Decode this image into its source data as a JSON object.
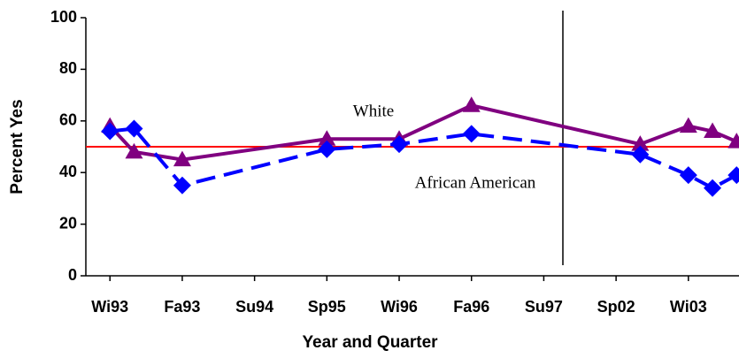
{
  "chart_data": {
    "type": "line",
    "xlabel": "Year and Quarter",
    "ylabel": "Percent Yes",
    "xlim": [
      -1,
      26.1
    ],
    "xticks": [
      {
        "value": 0,
        "label": "Wi93"
      },
      {
        "value": 3,
        "label": "Fa93"
      },
      {
        "value": 6,
        "label": "Su94"
      },
      {
        "value": 9,
        "label": "Sp95"
      },
      {
        "value": 12,
        "label": "Wi96"
      },
      {
        "value": 15,
        "label": "Fa96"
      },
      {
        "value": 18,
        "label": "Su97"
      },
      {
        "value": 21,
        "label": "Sp02"
      },
      {
        "value": 24,
        "label": "Wi03"
      }
    ],
    "ylim": [
      0,
      100
    ],
    "yticks": [
      0,
      20,
      40,
      60,
      80,
      100
    ],
    "reference_line": {
      "value": 50,
      "color": "#ff0000"
    },
    "annotations": [
      "White",
      "African American"
    ],
    "series": [
      {
        "name": "White",
        "color": "#800080",
        "marker": "triangle",
        "dashed": false,
        "x": [
          0,
          1,
          3,
          9,
          12,
          15,
          22,
          24,
          25,
          26
        ],
        "values": [
          58,
          48,
          45,
          53,
          53,
          66,
          51,
          58,
          56,
          52
        ]
      },
      {
        "name": "African American",
        "color": "#0000ff",
        "marker": "diamond",
        "dashed": true,
        "x": [
          0,
          1,
          3,
          9,
          12,
          15,
          22,
          24,
          25,
          26
        ],
        "values": [
          56,
          57,
          35,
          49,
          51,
          55,
          47,
          39,
          34,
          39
        ]
      }
    ]
  }
}
